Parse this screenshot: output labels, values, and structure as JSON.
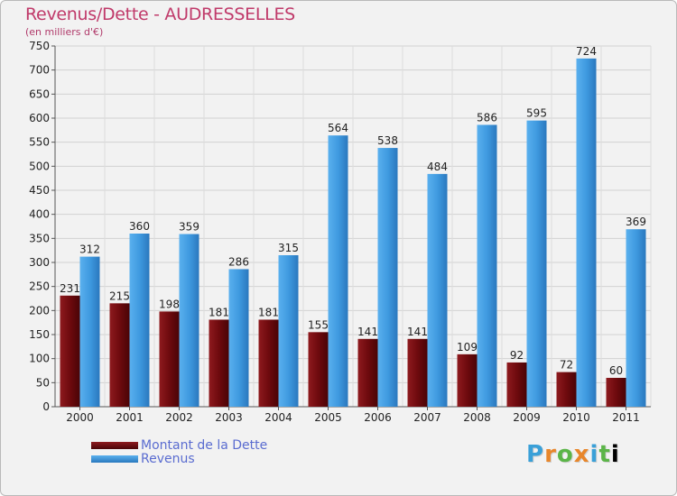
{
  "header": {
    "title": "Revenus/Dette - AUDRESSELLES",
    "subtitle": "(en milliers d'€)"
  },
  "legend": {
    "debt_label": "Montant de la Dette",
    "revenue_label": "Revenus",
    "placement": "bottom-left"
  },
  "logo": {
    "text": [
      "P",
      "r",
      "o",
      "x",
      "i",
      "t",
      "i"
    ]
  },
  "colors": {
    "background": "#f2f2f2",
    "debt": "#7a0e12",
    "revenue": "#3f9ae0",
    "title": "#c03a6a",
    "legend_text": "#5a6cd0"
  },
  "chart_data": {
    "type": "bar",
    "categories": [
      "2000",
      "2001",
      "2002",
      "2003",
      "2004",
      "2005",
      "2006",
      "2007",
      "2008",
      "2009",
      "2010",
      "2011"
    ],
    "series": [
      {
        "name": "Montant de la Dette",
        "values": [
          231,
          215,
          198,
          181,
          181,
          155,
          141,
          141,
          109,
          92,
          72,
          60
        ]
      },
      {
        "name": "Revenus",
        "values": [
          312,
          360,
          359,
          286,
          315,
          564,
          538,
          484,
          586,
          595,
          724,
          369
        ]
      }
    ],
    "ylim": [
      0,
      750
    ],
    "yticks": [
      0,
      50,
      100,
      150,
      200,
      250,
      300,
      350,
      400,
      450,
      500,
      550,
      600,
      650,
      700,
      750
    ],
    "grid": true,
    "title": "Revenus/Dette - AUDRESSELLES",
    "ylabel": "(en milliers d'€)"
  }
}
